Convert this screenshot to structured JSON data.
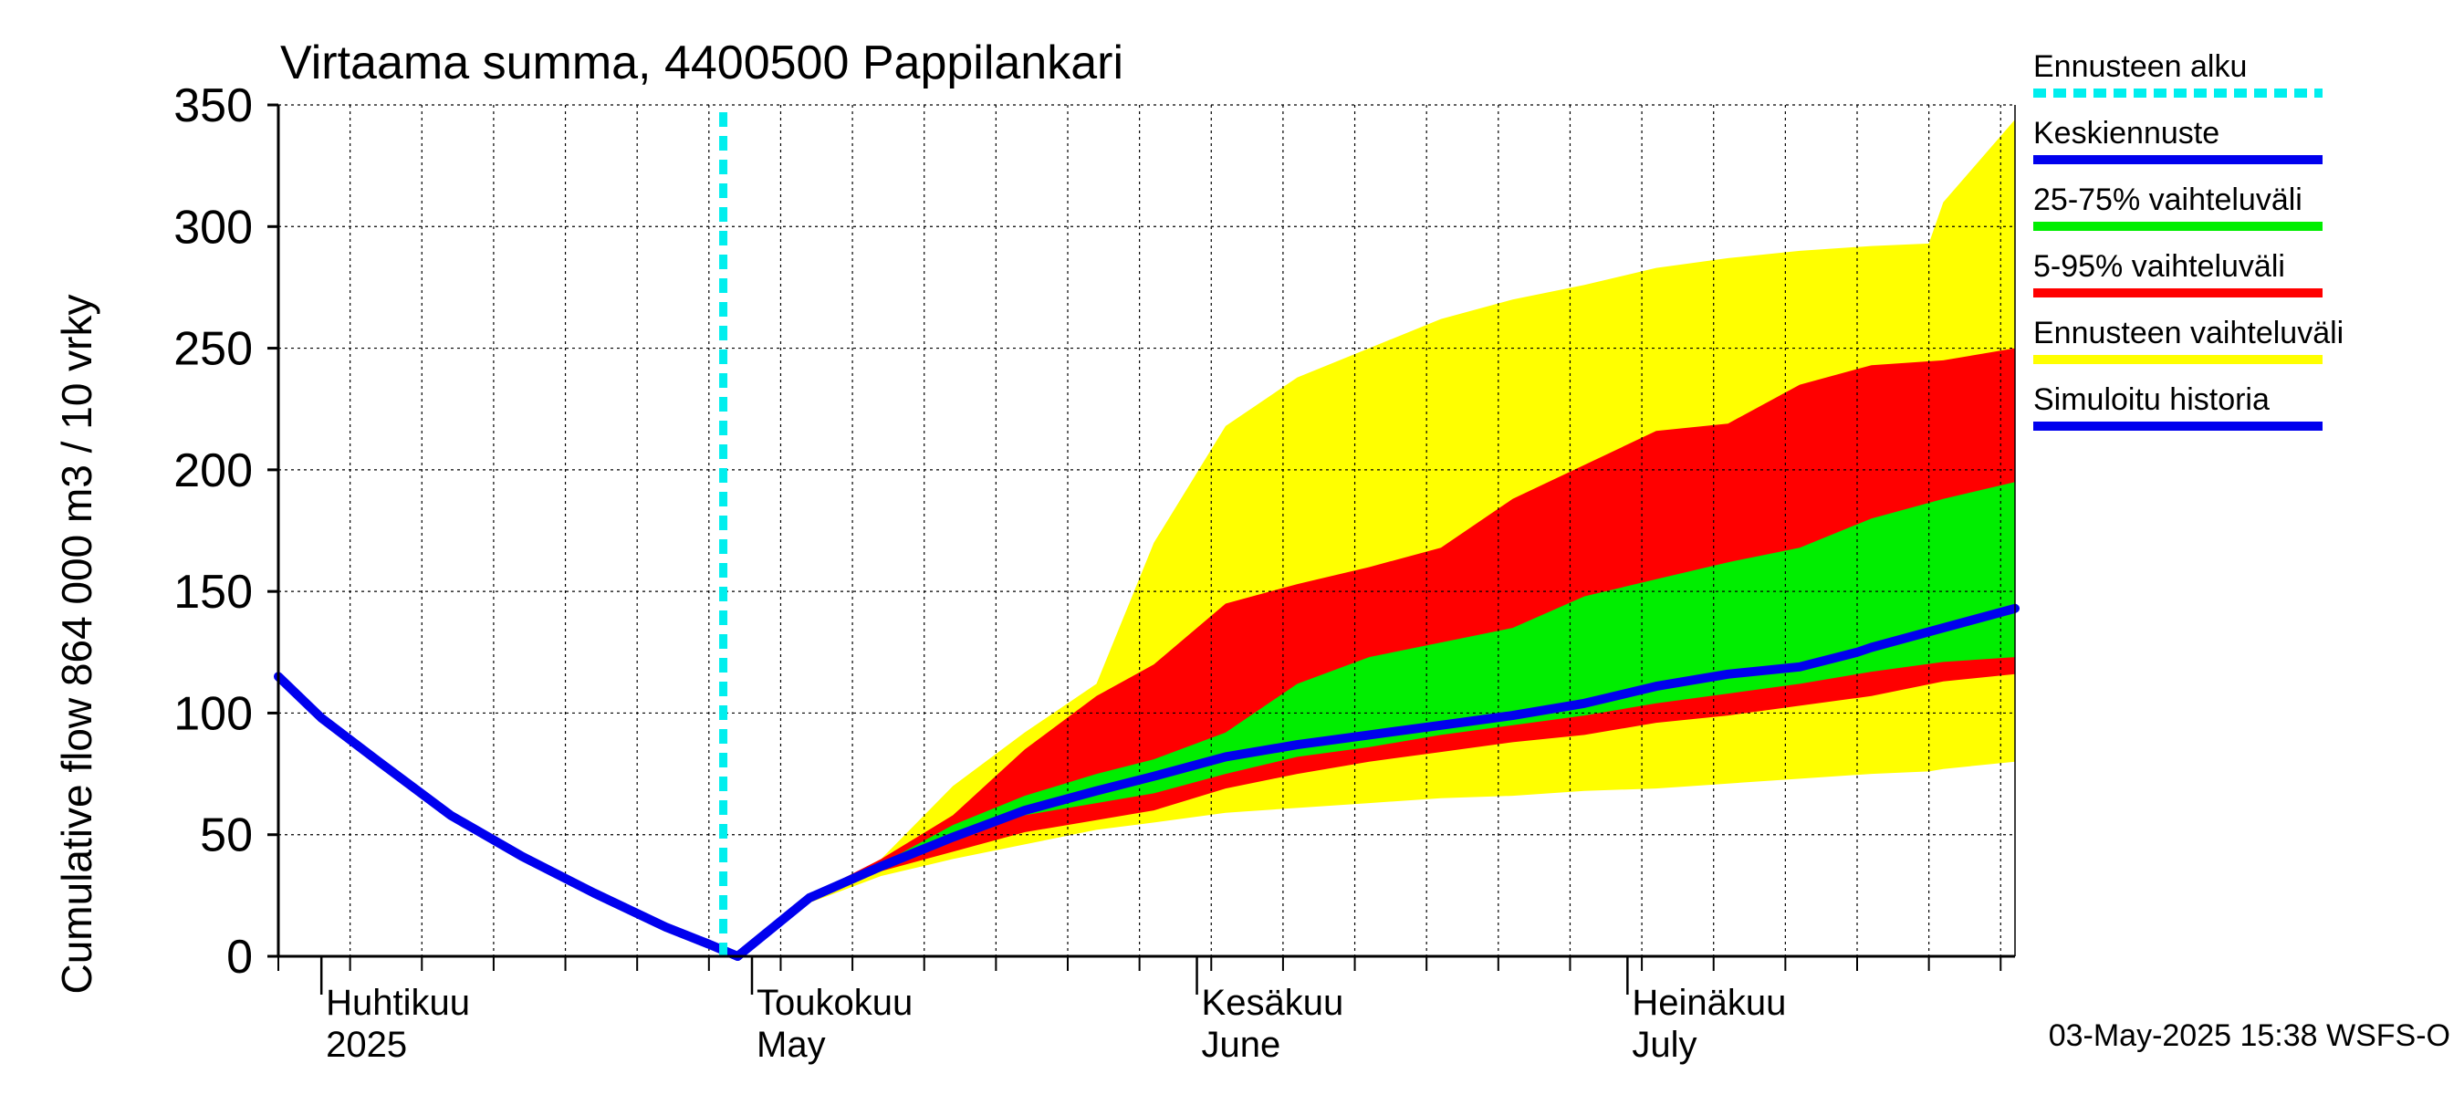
{
  "chart_data": {
    "type": "area",
    "title": "Virtaama summa, 4400500 Pappilankari",
    "ylabel": "Cumulative flow    864 000 m3 / 10 vrky",
    "ylim": [
      0,
      350
    ],
    "yticks": [
      0,
      50,
      100,
      150,
      200,
      250,
      300,
      350
    ],
    "grid": true,
    "legend_position": "right",
    "x_start": "2025-03-29",
    "x_end": "2025-07-28",
    "month_labels": [
      {
        "date": "2025-04-01",
        "fi": "Huhtikuu",
        "en": "2025"
      },
      {
        "date": "2025-05-01",
        "fi": "Toukokuu",
        "en": "May"
      },
      {
        "date": "2025-06-01",
        "fi": "Kesäkuu",
        "en": "June"
      },
      {
        "date": "2025-07-01",
        "fi": "Heinäkuu",
        "en": "July"
      }
    ],
    "forecast_start": "2025-04-29",
    "series": [
      {
        "name": "Ennusteen vaihteluväli",
        "color": "#ffff00",
        "kind": "band",
        "x": [
          "2025-04-30",
          "2025-05-05",
          "2025-05-10",
          "2025-05-15",
          "2025-05-20",
          "2025-05-25",
          "2025-05-29",
          "2025-06-03",
          "2025-06-08",
          "2025-06-13",
          "2025-06-18",
          "2025-06-23",
          "2025-06-28",
          "2025-07-03",
          "2025-07-08",
          "2025-07-13",
          "2025-07-18",
          "2025-07-22",
          "2025-07-23",
          "2025-07-28"
        ],
        "low": [
          0,
          22,
          33,
          40,
          46,
          52,
          55,
          59,
          61,
          63,
          65,
          66,
          68,
          69,
          71,
          73,
          75,
          76,
          77,
          80
        ],
        "high": [
          0,
          24,
          40,
          70,
          92,
          112,
          170,
          218,
          238,
          250,
          262,
          270,
          276,
          283,
          287,
          290,
          292,
          293,
          310,
          344
        ]
      },
      {
        "name": "5-95% vaihteluväli",
        "color": "#ff0000",
        "kind": "band",
        "x": [
          "2025-04-30",
          "2025-05-05",
          "2025-05-10",
          "2025-05-15",
          "2025-05-20",
          "2025-05-25",
          "2025-05-29",
          "2025-06-03",
          "2025-06-08",
          "2025-06-13",
          "2025-06-18",
          "2025-06-23",
          "2025-06-28",
          "2025-07-03",
          "2025-07-08",
          "2025-07-13",
          "2025-07-18",
          "2025-07-23",
          "2025-07-28"
        ],
        "low": [
          0,
          23,
          35,
          43,
          51,
          56,
          60,
          69,
          75,
          80,
          84,
          88,
          91,
          96,
          99,
          103,
          107,
          113,
          116
        ],
        "high": [
          0,
          25,
          40,
          58,
          85,
          107,
          120,
          145,
          153,
          160,
          168,
          188,
          202,
          216,
          219,
          235,
          243,
          245,
          250
        ]
      },
      {
        "name": "25-75% vaihteluväli",
        "color": "#00ee00",
        "kind": "band",
        "x": [
          "2025-04-30",
          "2025-05-05",
          "2025-05-10",
          "2025-05-15",
          "2025-05-20",
          "2025-05-25",
          "2025-05-29",
          "2025-06-03",
          "2025-06-08",
          "2025-06-13",
          "2025-06-18",
          "2025-06-23",
          "2025-06-28",
          "2025-07-03",
          "2025-07-08",
          "2025-07-13",
          "2025-07-18",
          "2025-07-23",
          "2025-07-28"
        ],
        "low": [
          0,
          24,
          37,
          48,
          58,
          63,
          67,
          75,
          82,
          86,
          91,
          95,
          99,
          104,
          108,
          112,
          117,
          121,
          123
        ],
        "high": [
          0,
          25,
          38,
          54,
          66,
          75,
          81,
          92,
          112,
          123,
          129,
          135,
          148,
          155,
          162,
          168,
          180,
          188,
          195
        ]
      },
      {
        "name": "Keskiennuste",
        "color": "#0000ee",
        "kind": "line",
        "x": [
          "2025-04-30",
          "2025-05-05",
          "2025-05-10",
          "2025-05-15",
          "2025-05-20",
          "2025-05-25",
          "2025-05-29",
          "2025-06-03",
          "2025-06-08",
          "2025-06-13",
          "2025-06-18",
          "2025-06-23",
          "2025-06-28",
          "2025-07-03",
          "2025-07-08",
          "2025-07-13",
          "2025-07-17",
          "2025-07-18",
          "2025-07-23",
          "2025-07-28"
        ],
        "y": [
          0,
          24,
          37,
          49,
          60,
          68,
          74,
          82,
          87,
          91,
          95,
          99,
          104,
          111,
          116,
          119,
          125,
          127,
          135,
          143
        ]
      },
      {
        "name": "Simuloitu historia",
        "color": "#0000ee",
        "kind": "line",
        "x": [
          "2025-03-29",
          "2025-04-01",
          "2025-04-05",
          "2025-04-10",
          "2025-04-15",
          "2025-04-20",
          "2025-04-25",
          "2025-04-28",
          "2025-04-30"
        ],
        "y": [
          115,
          98,
          80,
          58,
          41,
          26,
          12,
          5,
          0
        ]
      },
      {
        "name": "Ennusteen alku",
        "color": "#00eeee",
        "kind": "vline",
        "x": [
          "2025-04-29"
        ]
      }
    ],
    "legend": [
      {
        "label": "Ennusteen alku",
        "color": "#00eeee",
        "style": "dashed"
      },
      {
        "label": "Keskiennuste",
        "color": "#0000ee",
        "style": "solid"
      },
      {
        "label": "25-75% vaihteluväli",
        "color": "#00ee00",
        "style": "solid"
      },
      {
        "label": "5-95% vaihteluväli",
        "color": "#ff0000",
        "style": "solid"
      },
      {
        "label": "Ennusteen vaihteluväli",
        "color": "#ffff00",
        "style": "solid"
      },
      {
        "label": "Simuloitu historia",
        "color": "#0000ee",
        "style": "solid"
      }
    ],
    "footer": "03-May-2025 15:38 WSFS-O"
  }
}
